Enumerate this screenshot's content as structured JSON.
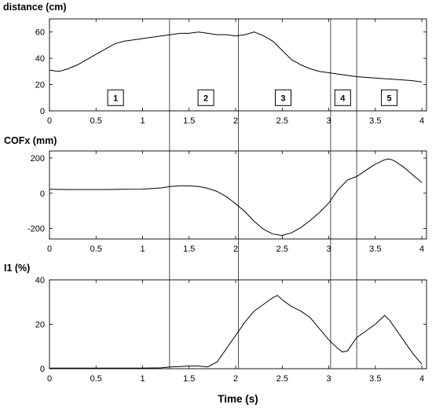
{
  "chart_data": [
    {
      "type": "line",
      "ylabel": "distance (cm)",
      "xlabel": "",
      "xlim": [
        0,
        4.05
      ],
      "ylim": [
        0,
        70
      ],
      "xticks": [
        0,
        0.5,
        1,
        1.5,
        2,
        2.5,
        3,
        3.5,
        4
      ],
      "xtick_labels": [
        "0",
        "0.5",
        "1",
        "1.5",
        "2",
        "2.5",
        "3",
        "3.5",
        "4"
      ],
      "yticks": [
        0,
        20,
        40,
        60
      ],
      "ytick_labels": [
        "0",
        "20",
        "40",
        "60"
      ],
      "grid": false,
      "line_color": "#000000",
      "phases": [
        {
          "label": "1",
          "x": 0.71,
          "y": 10
        },
        {
          "label": "2",
          "x": 1.68,
          "y": 10
        },
        {
          "label": "3",
          "x": 2.51,
          "y": 10
        },
        {
          "label": "4",
          "x": 3.15,
          "y": 10
        },
        {
          "label": "5",
          "x": 3.65,
          "y": 10
        }
      ],
      "series": [
        {
          "x": [
            0,
            0.1,
            0.2,
            0.3,
            0.4,
            0.5,
            0.6,
            0.7,
            0.8,
            0.9,
            1.0,
            1.1,
            1.2,
            1.3,
            1.4,
            1.5,
            1.6,
            1.7,
            1.8,
            1.9,
            2.0,
            2.1,
            2.2,
            2.3,
            2.4,
            2.5,
            2.6,
            2.7,
            2.8,
            2.9,
            3.0,
            3.1,
            3.2,
            3.3,
            3.4,
            3.5,
            3.6,
            3.7,
            3.8,
            3.9,
            4.0
          ],
          "y": [
            31,
            30,
            32,
            35,
            39,
            43,
            47,
            51,
            53,
            54,
            55,
            56,
            57,
            58,
            59,
            59,
            60,
            59,
            58,
            58,
            57,
            58,
            60,
            57,
            53,
            46,
            39,
            35,
            32,
            30,
            29,
            28,
            27,
            26,
            25.5,
            25,
            24.5,
            24,
            23.5,
            23,
            22
          ]
        }
      ]
    },
    {
      "type": "line",
      "ylabel": "COFx (mm)",
      "xlabel": "",
      "xlim": [
        0,
        4.05
      ],
      "ylim": [
        -260,
        240
      ],
      "xticks": [
        0,
        0.5,
        1,
        1.5,
        2,
        2.5,
        3,
        3.5,
        4
      ],
      "xtick_labels": [
        "0",
        "0.5",
        "1",
        "1.5",
        "2",
        "2.5",
        "3",
        "3.5",
        "4"
      ],
      "yticks": [
        -200,
        0,
        200
      ],
      "ytick_labels": [
        "-200",
        "0",
        "200"
      ],
      "grid": false,
      "line_color": "#000000",
      "series": [
        {
          "x": [
            0,
            0.2,
            0.4,
            0.6,
            0.8,
            1.0,
            1.2,
            1.3,
            1.4,
            1.5,
            1.6,
            1.7,
            1.8,
            1.9,
            2.0,
            2.1,
            2.2,
            2.3,
            2.4,
            2.5,
            2.6,
            2.7,
            2.8,
            2.9,
            3.0,
            3.1,
            3.2,
            3.3,
            3.4,
            3.5,
            3.6,
            3.65,
            3.7,
            3.8,
            3.9,
            4.0
          ],
          "y": [
            22,
            21,
            21,
            21,
            22,
            23,
            30,
            38,
            42,
            42,
            38,
            28,
            10,
            -20,
            -60,
            -105,
            -160,
            -205,
            -232,
            -240,
            -225,
            -195,
            -155,
            -110,
            -55,
            20,
            75,
            95,
            130,
            165,
            190,
            195,
            185,
            150,
            105,
            60
          ]
        }
      ]
    },
    {
      "type": "line",
      "ylabel": "I1 (%)",
      "xlabel": "Time (s)",
      "xlim": [
        0,
        4.05
      ],
      "ylim": [
        0,
        40
      ],
      "xticks": [
        0,
        0.5,
        1,
        1.5,
        2,
        2.5,
        3,
        3.5,
        4
      ],
      "xtick_labels": [
        "0",
        "0.5",
        "1",
        "1.5",
        "2",
        "2.5",
        "3",
        "3.5",
        "4"
      ],
      "yticks": [
        0,
        20,
        40
      ],
      "ytick_labels": [
        "0",
        "20",
        "40"
      ],
      "grid": false,
      "line_color": "#000000",
      "series": [
        {
          "x": [
            0,
            0.5,
            1.0,
            1.2,
            1.3,
            1.4,
            1.5,
            1.6,
            1.7,
            1.8,
            1.9,
            2.0,
            2.1,
            2.2,
            2.3,
            2.4,
            2.45,
            2.5,
            2.6,
            2.7,
            2.8,
            2.9,
            3.0,
            3.1,
            3.15,
            3.2,
            3.3,
            3.4,
            3.5,
            3.6,
            3.65,
            3.7,
            3.8,
            3.9,
            4.0
          ],
          "y": [
            0.3,
            0.3,
            0.3,
            0.4,
            0.8,
            1.0,
            1.2,
            1.2,
            0.8,
            3,
            9,
            15,
            21,
            26,
            29,
            32,
            33,
            31,
            28,
            26,
            23,
            18,
            13,
            9,
            7.5,
            8,
            14,
            17,
            20,
            24,
            22,
            19,
            13,
            7,
            2
          ]
        }
      ]
    }
  ],
  "phase_dividers": [
    1.29,
    2.03,
    3.02,
    3.3
  ]
}
